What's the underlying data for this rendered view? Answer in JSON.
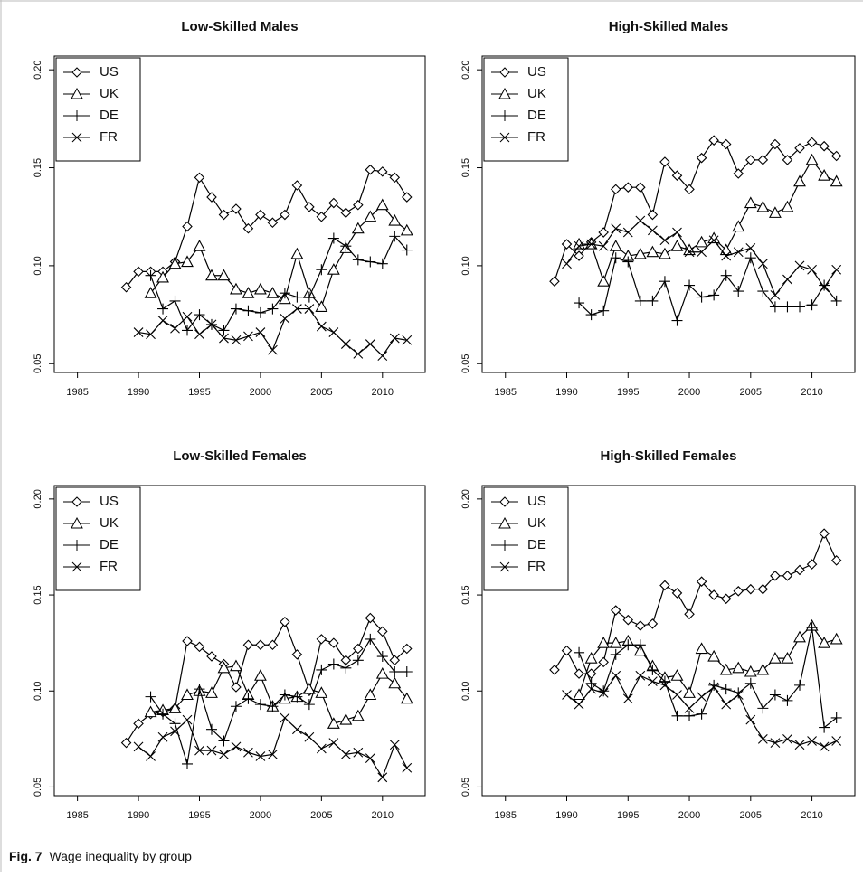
{
  "chart_data": [
    {
      "type": "line",
      "title": "Low-Skilled Males",
      "x": [
        1989,
        1990,
        1991,
        1992,
        1993,
        1994,
        1995,
        1996,
        1997,
        1998,
        1999,
        2000,
        2001,
        2002,
        2003,
        2004,
        2005,
        2006,
        2007,
        2008,
        2009,
        2010,
        2011,
        2012
      ],
      "xlim": [
        1983.1,
        2013.5
      ],
      "ylim": [
        0.0455,
        0.207
      ],
      "xticks": [
        1985,
        1990,
        1995,
        2000,
        2005,
        2010
      ],
      "yticks": [
        0.05,
        {
          "value": 0.1,
          "label": "0.10"
        },
        0.15,
        {
          "value": 0.2,
          "label": "0.20"
        }
      ],
      "legend": "top-left",
      "series": [
        {
          "name": "US",
          "color": "#000000",
          "marker": "diamond",
          "values": [
            0.089,
            0.097,
            0.097,
            0.097,
            0.102,
            0.12,
            0.145,
            0.135,
            0.126,
            0.129,
            0.119,
            0.126,
            0.122,
            0.126,
            0.141,
            0.13,
            0.125,
            0.132,
            0.127,
            0.131,
            0.149,
            0.148,
            0.145,
            0.135
          ]
        },
        {
          "name": "UK",
          "color": "#000000",
          "marker": "triangle",
          "values": [
            null,
            null,
            0.086,
            0.094,
            0.101,
            0.102,
            0.11,
            0.095,
            0.095,
            0.088,
            0.086,
            0.088,
            0.086,
            0.083,
            0.106,
            0.086,
            0.079,
            0.098,
            0.109,
            0.119,
            0.125,
            0.131,
            0.123,
            0.118
          ]
        },
        {
          "name": "DE",
          "color": "#000000",
          "marker": "plus",
          "values": [
            null,
            null,
            0.095,
            0.078,
            0.082,
            0.067,
            0.075,
            0.07,
            0.067,
            0.078,
            0.077,
            0.076,
            0.078,
            0.086,
            0.084,
            0.084,
            0.098,
            0.114,
            0.11,
            0.103,
            0.102,
            0.101,
            0.115,
            0.108
          ]
        },
        {
          "name": "FR",
          "color": "#000000",
          "marker": "cross",
          "values": [
            null,
            0.066,
            0.065,
            0.072,
            0.068,
            0.074,
            0.065,
            0.07,
            0.063,
            0.062,
            0.064,
            0.066,
            0.057,
            0.073,
            0.078,
            0.078,
            0.069,
            0.066,
            0.06,
            0.055,
            0.06,
            0.054,
            0.063,
            0.062
          ]
        }
      ]
    },
    {
      "type": "line",
      "title": "High-Skilled Males",
      "x": [
        1989,
        1990,
        1991,
        1992,
        1993,
        1994,
        1995,
        1996,
        1997,
        1998,
        1999,
        2000,
        2001,
        2002,
        2003,
        2004,
        2005,
        2006,
        2007,
        2008,
        2009,
        2010,
        2011,
        2012
      ],
      "xlim": [
        1983.1,
        2013.5
      ],
      "ylim": [
        0.0455,
        0.207
      ],
      "xticks": [
        1985,
        1990,
        1995,
        2000,
        2005,
        2010
      ],
      "yticks": [
        0.05,
        {
          "value": 0.1,
          "label": "0.10"
        },
        0.15,
        {
          "value": 0.2,
          "label": "0.20"
        }
      ],
      "legend": "top-left",
      "series": [
        {
          "name": "US",
          "color": "#000000",
          "marker": "diamond",
          "values": [
            0.092,
            0.111,
            0.105,
            0.112,
            0.117,
            0.139,
            0.14,
            0.14,
            0.126,
            0.153,
            0.146,
            0.139,
            0.155,
            0.164,
            0.162,
            0.147,
            0.154,
            0.154,
            0.162,
            0.154,
            0.16,
            0.163,
            0.161,
            0.156
          ]
        },
        {
          "name": "UK",
          "color": "#000000",
          "marker": "triangle",
          "values": [
            null,
            null,
            0.111,
            0.111,
            0.092,
            0.11,
            0.105,
            0.106,
            0.107,
            0.106,
            0.11,
            0.108,
            0.112,
            0.114,
            0.108,
            0.12,
            0.132,
            0.13,
            0.127,
            0.13,
            0.143,
            0.154,
            0.146,
            0.143
          ]
        },
        {
          "name": "DE",
          "color": "#000000",
          "marker": "plus",
          "values": [
            null,
            null,
            0.081,
            0.075,
            0.077,
            0.104,
            0.102,
            0.082,
            0.082,
            0.092,
            0.072,
            0.09,
            0.084,
            0.085,
            0.095,
            0.087,
            0.104,
            0.087,
            0.079,
            0.079,
            0.079,
            0.08,
            0.09,
            0.082
          ]
        },
        {
          "name": "FR",
          "color": "#000000",
          "marker": "cross",
          "values": [
            null,
            0.101,
            0.11,
            0.111,
            0.11,
            0.119,
            0.117,
            0.123,
            0.118,
            0.113,
            0.117,
            0.107,
            0.107,
            0.113,
            0.105,
            0.107,
            0.109,
            0.101,
            0.085,
            0.093,
            0.1,
            0.098,
            0.089,
            0.098
          ]
        }
      ]
    },
    {
      "type": "line",
      "title": "Low-Skilled Females",
      "x": [
        1989,
        1990,
        1991,
        1992,
        1993,
        1994,
        1995,
        1996,
        1997,
        1998,
        1999,
        2000,
        2001,
        2002,
        2003,
        2004,
        2005,
        2006,
        2007,
        2008,
        2009,
        2010,
        2011,
        2012
      ],
      "xlim": [
        1983.1,
        2013.5
      ],
      "ylim": [
        0.0455,
        0.207
      ],
      "xticks": [
        1985,
        1990,
        1995,
        2000,
        2005,
        2010
      ],
      "yticks": [
        0.05,
        {
          "value": 0.1,
          "label": "0.10"
        },
        0.15,
        {
          "value": 0.2,
          "label": "0.20"
        }
      ],
      "legend": "top-left",
      "series": [
        {
          "name": "US",
          "color": "#000000",
          "marker": "diamond",
          "values": [
            0.073,
            0.083,
            0.088,
            0.089,
            0.091,
            0.126,
            0.123,
            0.118,
            0.114,
            0.102,
            0.124,
            0.124,
            0.124,
            0.136,
            0.119,
            0.1,
            0.127,
            0.125,
            0.116,
            0.122,
            0.138,
            0.131,
            0.116,
            0.122
          ]
        },
        {
          "name": "UK",
          "color": "#000000",
          "marker": "triangle",
          "values": [
            null,
            null,
            0.089,
            0.09,
            0.091,
            0.098,
            0.1,
            0.099,
            0.112,
            0.113,
            0.098,
            0.108,
            0.092,
            0.096,
            0.097,
            0.101,
            0.099,
            0.083,
            0.085,
            0.087,
            0.098,
            0.109,
            0.104,
            0.096
          ]
        },
        {
          "name": "DE",
          "color": "#000000",
          "marker": "plus",
          "values": [
            null,
            null,
            0.097,
            0.088,
            0.083,
            0.062,
            0.101,
            0.08,
            0.074,
            0.092,
            0.096,
            0.093,
            0.092,
            0.098,
            0.097,
            0.093,
            0.111,
            0.114,
            0.112,
            0.116,
            0.127,
            0.118,
            0.11,
            0.11
          ]
        },
        {
          "name": "FR",
          "color": "#000000",
          "marker": "cross",
          "values": [
            null,
            0.071,
            0.066,
            0.076,
            0.079,
            0.085,
            0.069,
            0.069,
            0.067,
            0.071,
            0.068,
            0.066,
            0.067,
            0.086,
            0.08,
            0.076,
            0.07,
            0.073,
            0.067,
            0.068,
            0.065,
            0.055,
            0.072,
            0.06
          ]
        }
      ]
    },
    {
      "type": "line",
      "title": "High-Skilled Females",
      "x": [
        1989,
        1990,
        1991,
        1992,
        1993,
        1994,
        1995,
        1996,
        1997,
        1998,
        1999,
        2000,
        2001,
        2002,
        2003,
        2004,
        2005,
        2006,
        2007,
        2008,
        2009,
        2010,
        2011,
        2012
      ],
      "xlim": [
        1983.1,
        2013.5
      ],
      "ylim": [
        0.0455,
        0.207
      ],
      "xticks": [
        1985,
        1990,
        1995,
        2000,
        2005,
        2010
      ],
      "yticks": [
        0.05,
        {
          "value": 0.1,
          "label": "0.10"
        },
        0.15,
        {
          "value": 0.2,
          "label": "0.20"
        }
      ],
      "legend": "top-left",
      "series": [
        {
          "name": "US",
          "color": "#000000",
          "marker": "diamond",
          "values": [
            0.111,
            0.121,
            0.109,
            0.109,
            0.115,
            0.142,
            0.137,
            0.134,
            0.135,
            0.155,
            0.151,
            0.14,
            0.157,
            0.15,
            0.148,
            0.152,
            0.153,
            0.153,
            0.16,
            0.16,
            0.163,
            0.166,
            0.182,
            0.168
          ]
        },
        {
          "name": "UK",
          "color": "#000000",
          "marker": "triangle",
          "values": [
            null,
            null,
            0.098,
            0.117,
            0.125,
            0.125,
            0.126,
            0.121,
            0.113,
            0.107,
            0.108,
            0.099,
            0.122,
            0.118,
            0.111,
            0.112,
            0.11,
            0.111,
            0.117,
            0.117,
            0.128,
            0.134,
            0.125,
            0.127
          ]
        },
        {
          "name": "DE",
          "color": "#000000",
          "marker": "plus",
          "values": [
            null,
            null,
            0.12,
            0.104,
            0.1,
            0.119,
            0.124,
            0.124,
            0.111,
            0.105,
            0.087,
            0.087,
            0.088,
            0.103,
            0.101,
            0.099,
            0.104,
            0.091,
            0.098,
            0.095,
            0.103,
            0.133,
            0.081,
            0.086
          ]
        },
        {
          "name": "FR",
          "color": "#000000",
          "marker": "cross",
          "values": [
            null,
            0.098,
            0.093,
            0.101,
            0.099,
            0.108,
            0.096,
            0.108,
            0.105,
            0.103,
            0.098,
            0.091,
            0.097,
            0.102,
            0.093,
            0.098,
            0.085,
            0.075,
            0.073,
            0.075,
            0.072,
            0.074,
            0.071,
            0.074
          ]
        }
      ]
    }
  ],
  "caption": {
    "label": "Fig. 7",
    "text": "Wage inequality by group"
  }
}
